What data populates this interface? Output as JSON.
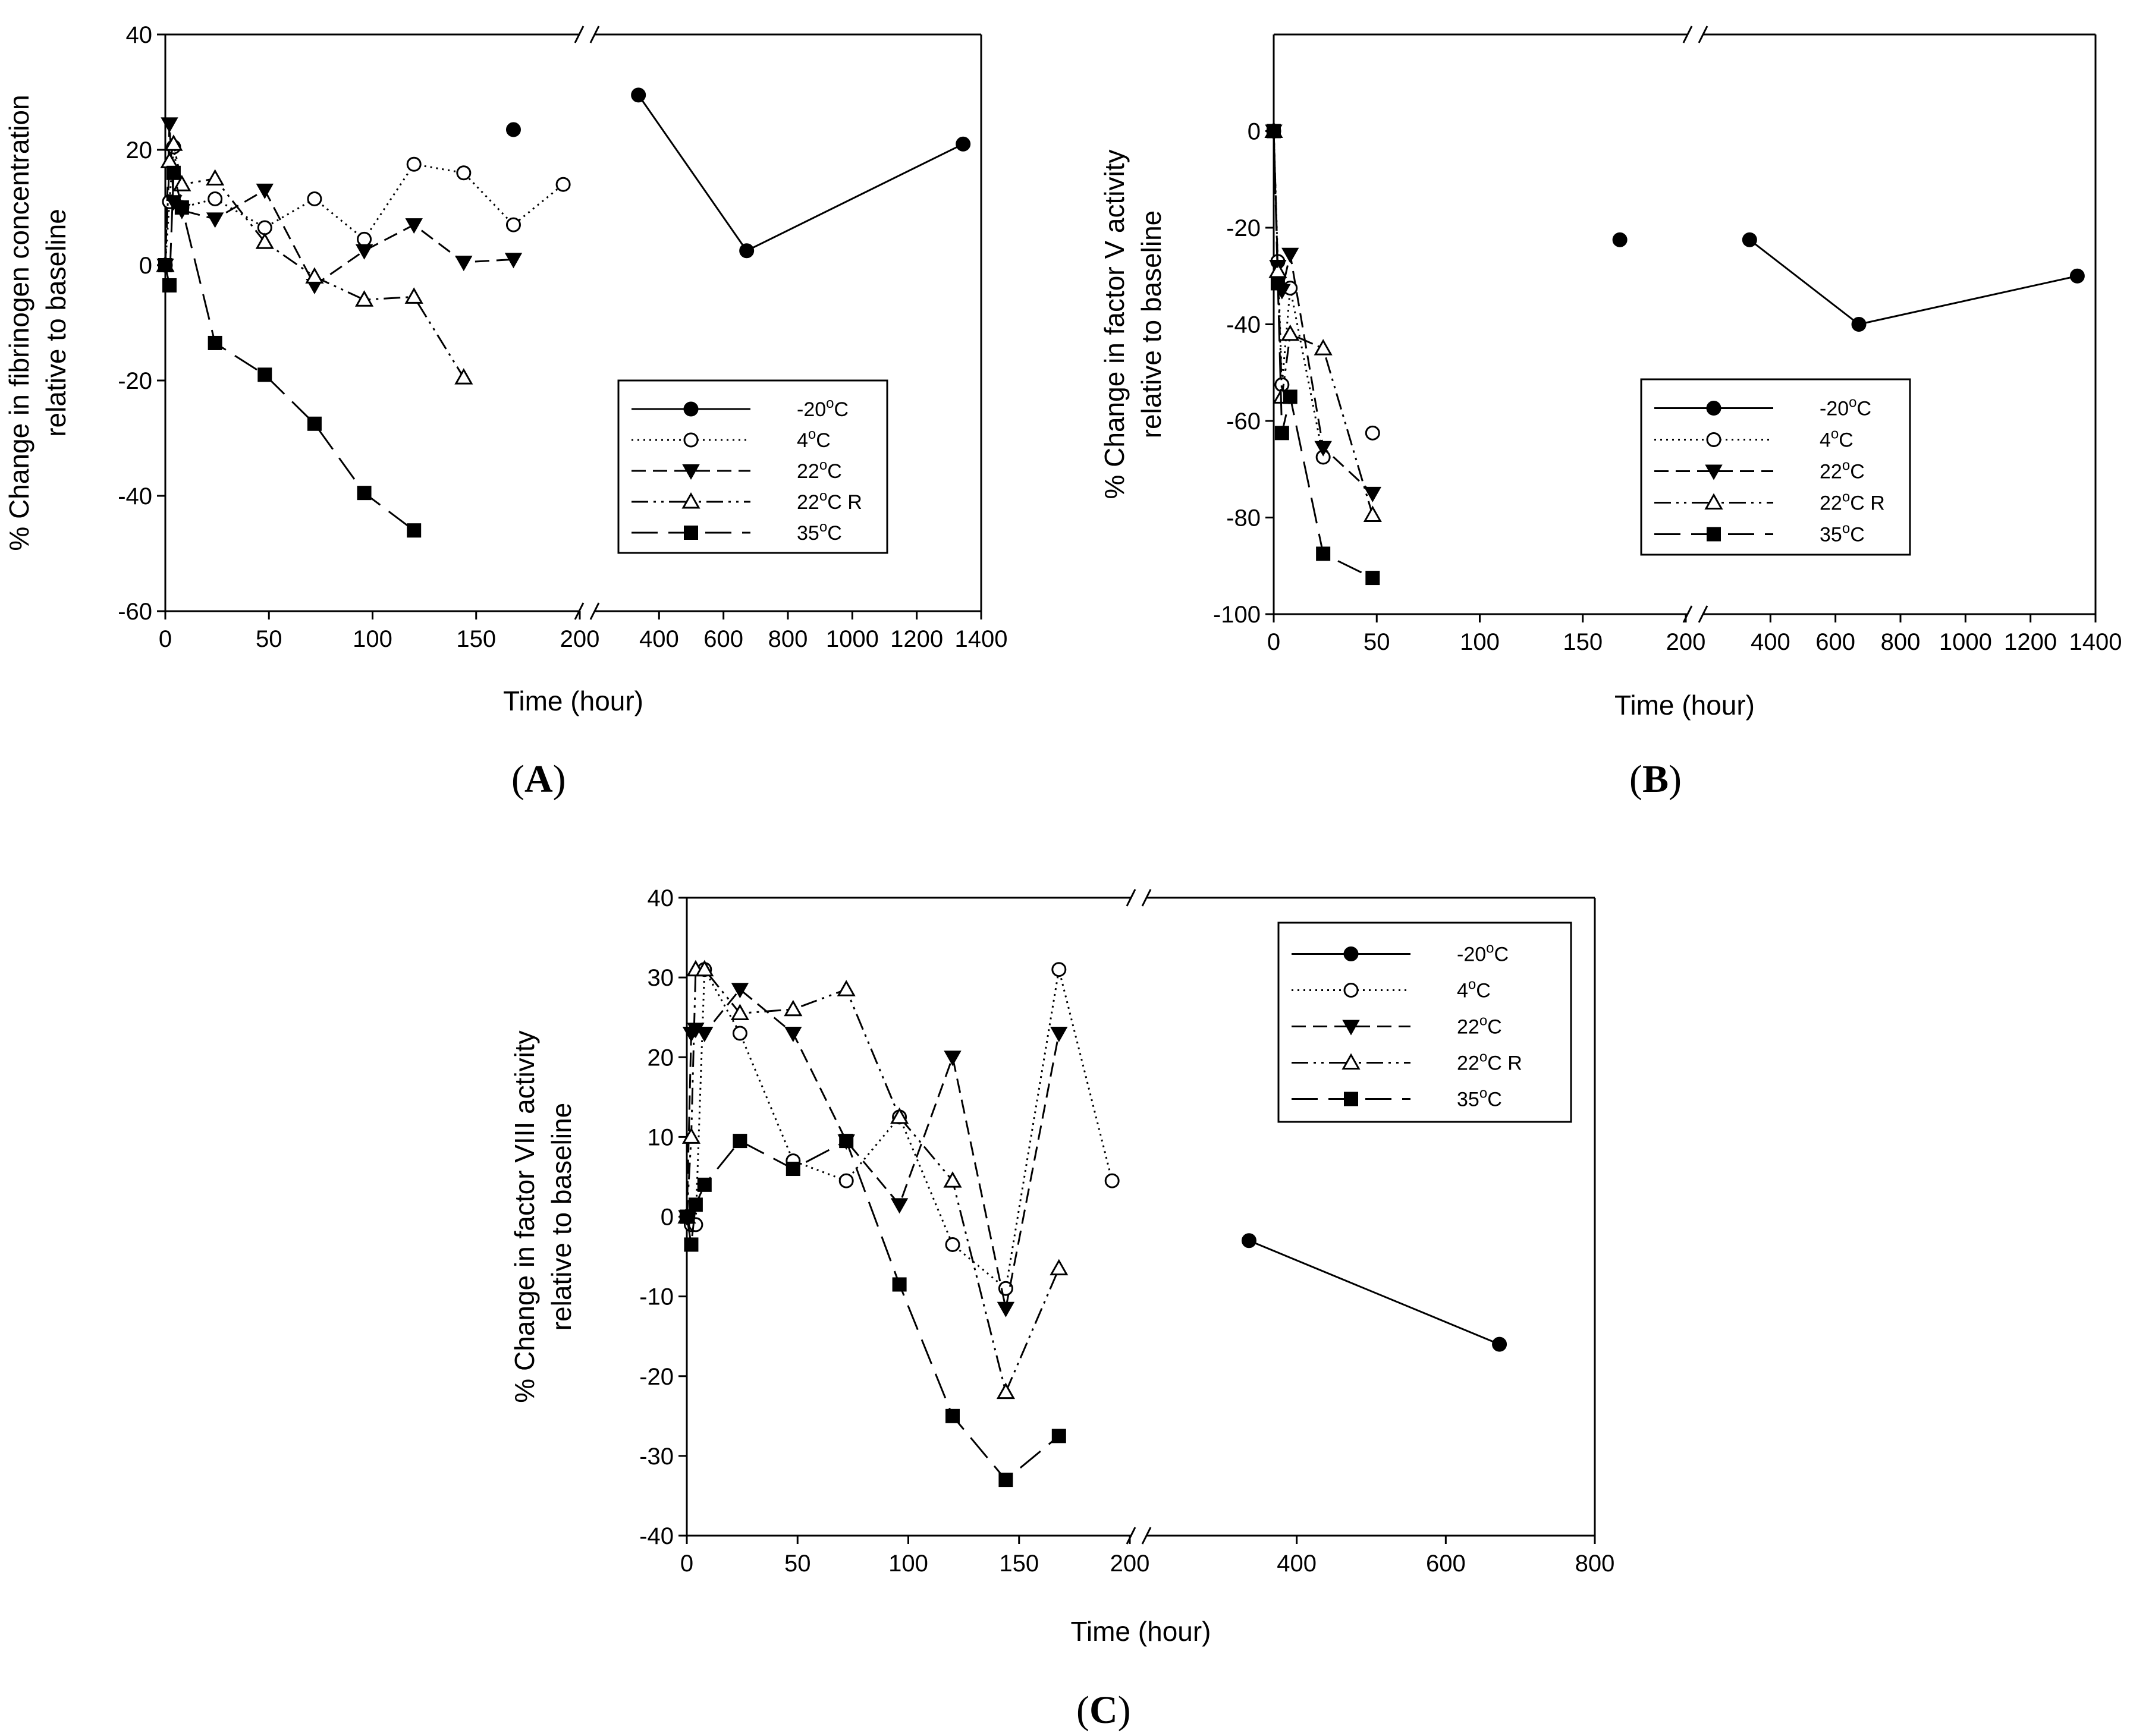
{
  "chart_data": [
    {
      "type": "line",
      "panel": "(A)",
      "panel_letter": "A",
      "xlabel": "Time (hour)",
      "ylabel_line1": "% Change in fibrinogen concentration",
      "ylabel_line2": "relative to baseline",
      "ylim": [
        -60,
        40
      ],
      "yticks": [
        -60,
        -40,
        -20,
        0,
        20,
        40
      ],
      "x_segments": [
        {
          "range": [
            0,
            200
          ],
          "ticks": [
            0,
            50,
            100,
            150,
            200
          ]
        },
        {
          "range": [
            200,
            1400
          ],
          "ticks": [
            400,
            600,
            800,
            1000,
            1200,
            1400
          ]
        }
      ],
      "legend_position": "right",
      "series": [
        {
          "name": "-20°C",
          "label_base": "-20",
          "style": "solid",
          "marker": "circle-filled",
          "points": [
            [
              168,
              23.5
            ],
            [
              336,
              29.5
            ],
            [
              672,
              2.5
            ],
            [
              1344,
              21
            ]
          ],
          "lines": [
            [
              1,
              2,
              3
            ]
          ]
        },
        {
          "name": "4°C",
          "label_base": "4",
          "style": "dotted",
          "marker": "circle-open",
          "points": [
            [
              0,
              0
            ],
            [
              2,
              11
            ],
            [
              4,
              20.5
            ],
            [
              8,
              10
            ],
            [
              24,
              11.5
            ],
            [
              48,
              6.5
            ],
            [
              72,
              11.5
            ],
            [
              96,
              4.5
            ],
            [
              120,
              17.5
            ],
            [
              144,
              16
            ],
            [
              168,
              7
            ],
            [
              192,
              14
            ]
          ],
          "lines": [
            [
              0,
              1,
              2,
              3,
              4,
              5,
              6,
              7,
              8,
              9,
              10,
              11
            ]
          ]
        },
        {
          "name": "22°C",
          "label_base": "22",
          "style": "dashed",
          "marker": "triangle-down-filled",
          "points": [
            [
              0,
              0
            ],
            [
              2,
              24.5
            ],
            [
              4,
              11
            ],
            [
              8,
              9.5
            ],
            [
              24,
              8
            ],
            [
              48,
              13
            ],
            [
              72,
              -3.5
            ],
            [
              96,
              2.5
            ],
            [
              120,
              7
            ],
            [
              144,
              0.5
            ],
            [
              168,
              1
            ]
          ],
          "lines": [
            [
              0,
              1,
              2,
              3,
              4,
              5,
              6,
              7,
              8,
              9,
              10
            ]
          ]
        },
        {
          "name": "22°C R",
          "label_base": "22",
          "label_suffix": " R",
          "style": "dash-dot-dot",
          "marker": "triangle-up-open",
          "points": [
            [
              0,
              0
            ],
            [
              2,
              18
            ],
            [
              4,
              21
            ],
            [
              8,
              14
            ],
            [
              24,
              15
            ],
            [
              48,
              4
            ],
            [
              72,
              -2
            ],
            [
              96,
              -6
            ],
            [
              120,
              -5.5
            ],
            [
              144,
              -19.5
            ]
          ],
          "lines": [
            [
              0,
              1,
              2,
              3,
              4,
              5,
              6,
              7,
              8,
              9
            ]
          ]
        },
        {
          "name": "35°C",
          "label_base": "35",
          "style": "long-dash",
          "marker": "square-filled",
          "points": [
            [
              0,
              0
            ],
            [
              2,
              -3.5
            ],
            [
              4,
              16
            ],
            [
              8,
              10
            ],
            [
              24,
              -13.5
            ],
            [
              48,
              -19
            ],
            [
              72,
              -27.5
            ],
            [
              96,
              -39.5
            ],
            [
              120,
              -46
            ]
          ],
          "lines": [
            [
              0,
              1,
              2,
              3,
              4,
              5,
              6,
              7,
              8
            ]
          ]
        }
      ]
    },
    {
      "type": "line",
      "panel": "(B)",
      "panel_letter": "B",
      "xlabel": "Time (hour)",
      "ylabel_line1": "% Change in factor V activity",
      "ylabel_line2": "relative to baseline",
      "ylim": [
        -100,
        20
      ],
      "yticks": [
        -100,
        -80,
        -60,
        -40,
        -20,
        0
      ],
      "x_segments": [
        {
          "range": [
            0,
            200
          ],
          "ticks": [
            0,
            50,
            100,
            150,
            200
          ]
        },
        {
          "range": [
            200,
            1400
          ],
          "ticks": [
            400,
            600,
            800,
            1000,
            1200,
            1400
          ]
        }
      ],
      "legend_position": "right",
      "series": [
        {
          "name": "-20°C",
          "label_base": "-20",
          "style": "solid",
          "marker": "circle-filled",
          "points": [
            [
              168,
              -22.5
            ],
            [
              336,
              -22.5
            ],
            [
              672,
              -40
            ],
            [
              1344,
              -30
            ]
          ],
          "lines": [
            [
              1,
              2,
              3
            ]
          ]
        },
        {
          "name": "4°C",
          "label_base": "4",
          "style": "dotted",
          "marker": "circle-open",
          "points": [
            [
              0,
              0
            ],
            [
              2,
              -27
            ],
            [
              4,
              -52.5
            ],
            [
              8,
              -32.5
            ],
            [
              24,
              -67.5
            ],
            [
              48,
              -62.5
            ]
          ],
          "lines": [
            [
              0,
              1,
              2,
              3,
              4
            ]
          ]
        },
        {
          "name": "22°C",
          "label_base": "22",
          "style": "dashed",
          "marker": "triangle-down-filled",
          "points": [
            [
              0,
              0
            ],
            [
              2,
              -28
            ],
            [
              4,
              -33
            ],
            [
              8,
              -25.5
            ],
            [
              24,
              -65.5
            ],
            [
              48,
              -75
            ]
          ],
          "lines": [
            [
              0,
              1,
              2,
              3,
              4,
              5
            ]
          ]
        },
        {
          "name": "22°C R",
          "label_base": "22",
          "label_suffix": " R",
          "style": "dash-dot-dot",
          "marker": "triangle-up-open",
          "points": [
            [
              0,
              0
            ],
            [
              2,
              -29
            ],
            [
              4,
              -55
            ],
            [
              8,
              -42
            ],
            [
              24,
              -45
            ],
            [
              48,
              -79.5
            ]
          ],
          "lines": [
            [
              0,
              1,
              2,
              3,
              4,
              5
            ]
          ]
        },
        {
          "name": "35°C",
          "label_base": "35",
          "style": "long-dash",
          "marker": "square-filled",
          "points": [
            [
              0,
              0
            ],
            [
              2,
              -31.5
            ],
            [
              4,
              -62.5
            ],
            [
              8,
              -55
            ],
            [
              24,
              -87.5
            ],
            [
              48,
              -92.5
            ]
          ],
          "lines": [
            [
              0,
              1,
              2,
              3,
              4,
              5
            ]
          ]
        }
      ]
    },
    {
      "type": "line",
      "panel": "(C)",
      "panel_letter": "C",
      "xlabel": "Time (hour)",
      "ylabel_line1": "% Change in factor VIII activity",
      "ylabel_line2": "relative to baseline",
      "ylim": [
        -40,
        40
      ],
      "yticks": [
        -40,
        -30,
        -20,
        -10,
        0,
        10,
        20,
        30,
        40
      ],
      "x_segments": [
        {
          "range": [
            0,
            200
          ],
          "ticks": [
            0,
            50,
            100,
            150,
            200
          ]
        },
        {
          "range": [
            200,
            800
          ],
          "ticks": [
            400,
            600,
            800
          ]
        }
      ],
      "legend_position": "top-right",
      "series": [
        {
          "name": "-20°C",
          "label_base": "-20",
          "style": "solid",
          "marker": "circle-filled",
          "points": [
            [
              0,
              0
            ],
            [
              336,
              -3
            ],
            [
              672,
              -16
            ]
          ],
          "lines": [
            [
              1,
              2
            ]
          ]
        },
        {
          "name": "4°C",
          "label_base": "4",
          "style": "dotted",
          "marker": "circle-open",
          "points": [
            [
              0,
              0
            ],
            [
              2,
              -1
            ],
            [
              4,
              -1
            ],
            [
              8,
              31
            ],
            [
              24,
              23
            ],
            [
              48,
              7
            ],
            [
              72,
              4.5
            ],
            [
              96,
              12.5
            ],
            [
              120,
              -3.5
            ],
            [
              144,
              -9
            ],
            [
              168,
              31
            ],
            [
              192,
              4.5
            ]
          ],
          "lines": [
            [
              0,
              1,
              2,
              3,
              4,
              5,
              6,
              7,
              8,
              9,
              10,
              11
            ]
          ]
        },
        {
          "name": "22°C",
          "label_base": "22",
          "style": "dashed",
          "marker": "triangle-down-filled",
          "points": [
            [
              0,
              0
            ],
            [
              2,
              23
            ],
            [
              4,
              23.5
            ],
            [
              8,
              23
            ],
            [
              24,
              28.5
            ],
            [
              48,
              23
            ],
            [
              72,
              9.5
            ],
            [
              96,
              1.5
            ],
            [
              120,
              20
            ],
            [
              144,
              -11.5
            ],
            [
              168,
              23
            ]
          ],
          "lines": [
            [
              0,
              1,
              2,
              3,
              4,
              5,
              6,
              7,
              8,
              9,
              10
            ]
          ]
        },
        {
          "name": "22°C R",
          "label_base": "22",
          "label_suffix": " R",
          "style": "dash-dot-dot",
          "marker": "triangle-up-open",
          "points": [
            [
              0,
              0
            ],
            [
              2,
              10
            ],
            [
              4,
              31
            ],
            [
              8,
              31
            ],
            [
              24,
              25.5
            ],
            [
              48,
              26
            ],
            [
              72,
              28.5
            ],
            [
              96,
              12.5
            ],
            [
              120,
              4.5
            ],
            [
              144,
              -22
            ],
            [
              168,
              -6.5
            ]
          ],
          "lines": [
            [
              0,
              1,
              2,
              3,
              4,
              5,
              6,
              7,
              8,
              9,
              10
            ]
          ]
        },
        {
          "name": "35°C",
          "label_base": "35",
          "style": "long-dash",
          "marker": "square-filled",
          "points": [
            [
              0,
              0
            ],
            [
              2,
              -3.5
            ],
            [
              4,
              1.5
            ],
            [
              8,
              4
            ],
            [
              24,
              9.5
            ],
            [
              48,
              6
            ],
            [
              72,
              9.5
            ],
            [
              96,
              -8.5
            ],
            [
              120,
              -25
            ],
            [
              144,
              -33
            ],
            [
              168,
              -27.5
            ]
          ],
          "lines": [
            [
              0,
              1,
              2,
              3,
              4,
              5,
              6,
              7,
              8,
              9,
              10
            ]
          ]
        }
      ]
    }
  ]
}
